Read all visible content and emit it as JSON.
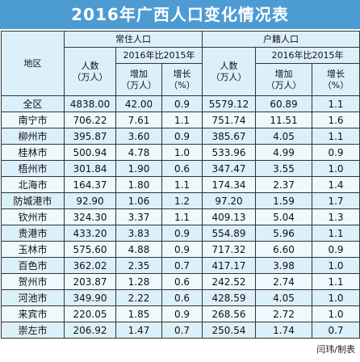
{
  "header": {
    "title": "2016年广西人口变化情况表"
  },
  "table": {
    "region_header": "地区",
    "groups": [
      "常住人口",
      "户籍人口"
    ],
    "compare": "2016年比2015年",
    "count_header": [
      "人数",
      "（万人）"
    ],
    "increase_header": [
      "增加",
      "（万人）"
    ],
    "growth_header": [
      "增长",
      "（%）"
    ],
    "rows": [
      [
        "全区",
        "4838.00",
        "42.00",
        "0.9",
        "5579.12",
        "60.89",
        "1.1"
      ],
      [
        "南宁市",
        "706.22",
        "7.61",
        "1.1",
        "751.74",
        "11.51",
        "1.6"
      ],
      [
        "柳州市",
        "395.87",
        "3.60",
        "0.9",
        "385.67",
        "4.05",
        "1.1"
      ],
      [
        "桂林市",
        "500.94",
        "4.78",
        "1.0",
        "533.96",
        "4.99",
        "0.9"
      ],
      [
        "梧州市",
        "301.84",
        "1.90",
        "0.6",
        "347.47",
        "3.55",
        "1.0"
      ],
      [
        "北海市",
        "164.37",
        "1.80",
        "1.1",
        "174.34",
        "2.37",
        "1.4"
      ],
      [
        "防城港市",
        "92.90",
        "1.06",
        "1.2",
        "97.20",
        "1.59",
        "1.7"
      ],
      [
        "钦州市",
        "324.30",
        "3.37",
        "1.1",
        "409.13",
        "5.04",
        "1.3"
      ],
      [
        "贵港市",
        "433.20",
        "3.83",
        "0.9",
        "554.89",
        "5.96",
        "1.1"
      ],
      [
        "玉林市",
        "575.60",
        "4.88",
        "0.9",
        "717.32",
        "6.60",
        "0.9"
      ],
      [
        "百色市",
        "362.02",
        "2.35",
        "0.7",
        "417.17",
        "3.98",
        "1.0"
      ],
      [
        "贺州市",
        "203.87",
        "1.28",
        "0.6",
        "242.52",
        "2.74",
        "1.1"
      ],
      [
        "河池市",
        "349.90",
        "2.22",
        "0.6",
        "428.59",
        "4.05",
        "1.0"
      ],
      [
        "来宾市",
        "220.05",
        "1.85",
        "0.9",
        "268.56",
        "2.72",
        "1.0"
      ],
      [
        "崇左市",
        "206.92",
        "1.47",
        "0.7",
        "250.54",
        "1.74",
        "0.7"
      ]
    ]
  },
  "footer": {
    "credit": "闫玮/制表"
  }
}
